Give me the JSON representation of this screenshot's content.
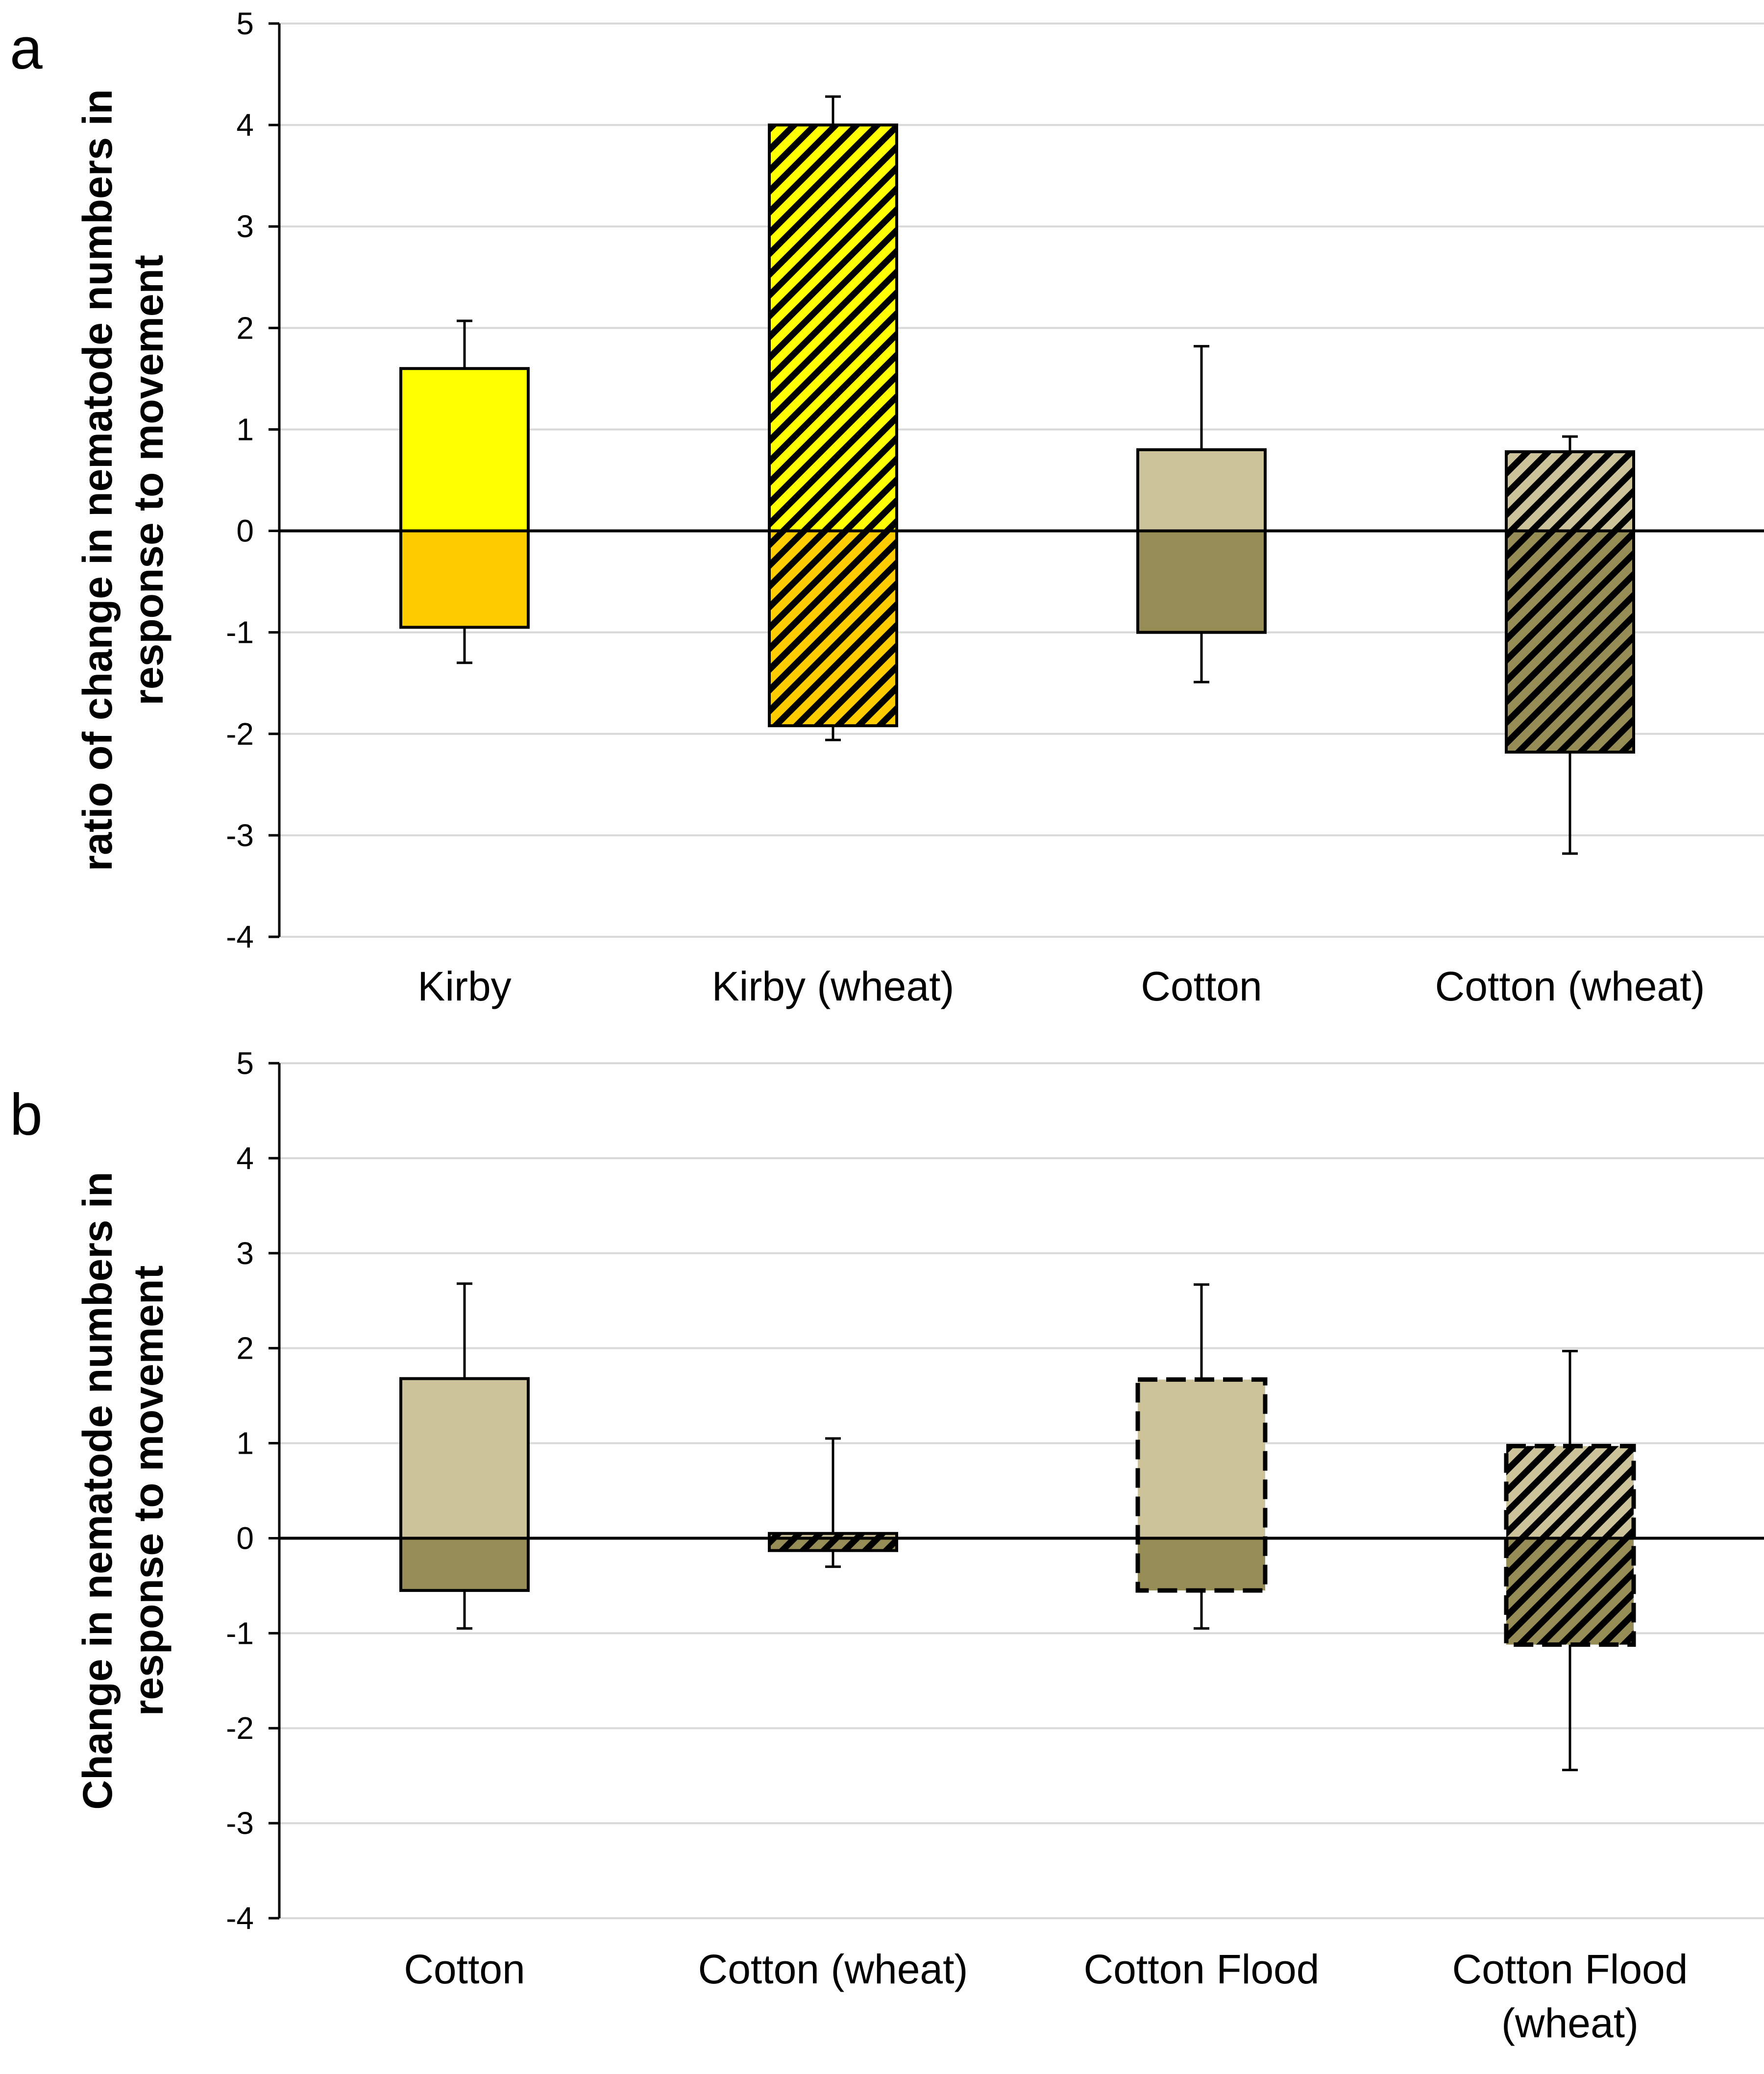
{
  "chart_data": [
    {
      "type": "bar",
      "panel_label": "a",
      "title": "",
      "xlabel": "",
      "ylabel_lines": [
        "ratio of change in nematode numbers in",
        "response to movement"
      ],
      "ylim": [
        -4,
        5
      ],
      "yticks": [
        5,
        4,
        3,
        2,
        1,
        0,
        -1,
        -2,
        -3,
        -4
      ],
      "ytick_labels": [
        "5",
        "4",
        "3",
        "2",
        "1",
        "0",
        "-1",
        "-2",
        "-3",
        "-4"
      ],
      "grid": true,
      "legend": "none",
      "categories": [
        {
          "label_lines": [
            "Kirby"
          ],
          "positive": 1.6,
          "positive_error": 0.47,
          "negative": -0.95,
          "negative_error": 0.35,
          "pos_color": "#ffff00",
          "neg_color": "#ffcc00",
          "hatched": false,
          "dashed_outline": false
        },
        {
          "label_lines": [
            "Kirby (wheat)"
          ],
          "positive": 4.0,
          "positive_error": 0.28,
          "negative": -1.92,
          "negative_error": 0.14,
          "pos_color": "#ffff00",
          "neg_color": "#ffcc00",
          "hatched": true,
          "dashed_outline": false
        },
        {
          "label_lines": [
            "Cotton"
          ],
          "positive": 0.8,
          "positive_error": 1.02,
          "negative": -1.0,
          "negative_error": 0.49,
          "pos_color": "#cdc39b",
          "neg_color": "#968c55",
          "hatched": false,
          "dashed_outline": false
        },
        {
          "label_lines": [
            "Cotton (wheat)"
          ],
          "positive": 0.78,
          "positive_error": 0.15,
          "negative": -2.18,
          "negative_error": 1.0,
          "pos_color": "#cdc39b",
          "neg_color": "#968c55",
          "hatched": true,
          "dashed_outline": false
        }
      ]
    },
    {
      "type": "bar",
      "panel_label": "b",
      "title": "",
      "xlabel": "",
      "ylabel_lines": [
        "Change in nematode numbers in",
        "response to movement"
      ],
      "ylim": [
        -4,
        5
      ],
      "yticks": [
        5,
        4,
        3,
        2,
        1,
        0,
        -1,
        -2,
        -3,
        -4
      ],
      "ytick_labels": [
        "5",
        "4",
        "3",
        "2",
        "1",
        "0",
        "-1",
        "-2",
        "-3",
        "-4"
      ],
      "grid": true,
      "legend": "none",
      "categories": [
        {
          "label_lines": [
            "Cotton"
          ],
          "positive": 1.68,
          "positive_error": 1.0,
          "negative": -0.55,
          "negative_error": 0.4,
          "pos_color": "#cdc39b",
          "neg_color": "#968c55",
          "hatched": false,
          "dashed_outline": false
        },
        {
          "label_lines": [
            "Cotton (wheat)"
          ],
          "positive": 0.05,
          "positive_error": 1.0,
          "negative": -0.13,
          "negative_error": 0.17,
          "pos_color": "#cdc39b",
          "neg_color": "#968c55",
          "hatched": true,
          "dashed_outline": false
        },
        {
          "label_lines": [
            "Cotton Flood"
          ],
          "positive": 1.67,
          "positive_error": 1.0,
          "negative": -0.55,
          "negative_error": 0.4,
          "pos_color": "#cdc39b",
          "neg_color": "#968c55",
          "hatched": false,
          "dashed_outline": true
        },
        {
          "label_lines": [
            "Cotton Flood",
            "(wheat)"
          ],
          "positive": 0.97,
          "positive_error": 1.0,
          "negative": -1.12,
          "negative_error": 1.32,
          "pos_color": "#cdc39b",
          "neg_color": "#968c55",
          "hatched": true,
          "dashed_outline": true
        }
      ]
    }
  ]
}
